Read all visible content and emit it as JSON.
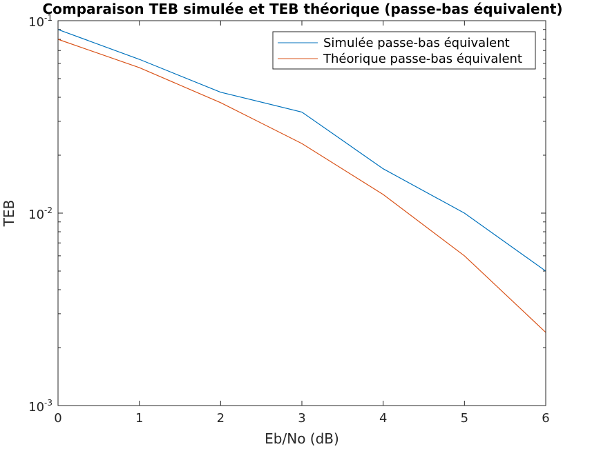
{
  "chart_data": {
    "type": "line",
    "title": "Comparaison TEB simulée et TEB théorique (passe-bas équivalent)",
    "xlabel": "Eb/No (dB)",
    "ylabel": "TEB",
    "x": [
      0,
      1,
      2,
      3,
      4,
      5,
      6
    ],
    "xlim": [
      0,
      6
    ],
    "ylim": [
      0.001,
      0.1
    ],
    "yscale": "log",
    "grid": false,
    "legend_position": "top-right",
    "x_ticks": [
      "0",
      "1",
      "2",
      "3",
      "4",
      "5",
      "6"
    ],
    "y_ticks": [
      {
        "base": "10",
        "exp": "-1",
        "value": 0.1
      },
      {
        "base": "10",
        "exp": "-2",
        "value": 0.01
      },
      {
        "base": "10",
        "exp": "-3",
        "value": 0.001
      }
    ],
    "series": [
      {
        "name": "Simulée passe-bas équivalent",
        "color": "#0072BD",
        "values": [
          0.09,
          0.063,
          0.0425,
          0.0335,
          0.017,
          0.01,
          0.005
        ]
      },
      {
        "name": "Théorique passe-bas équivalent",
        "color": "#D95319",
        "values": [
          0.08,
          0.057,
          0.0375,
          0.023,
          0.0125,
          0.006,
          0.0024
        ]
      }
    ]
  }
}
